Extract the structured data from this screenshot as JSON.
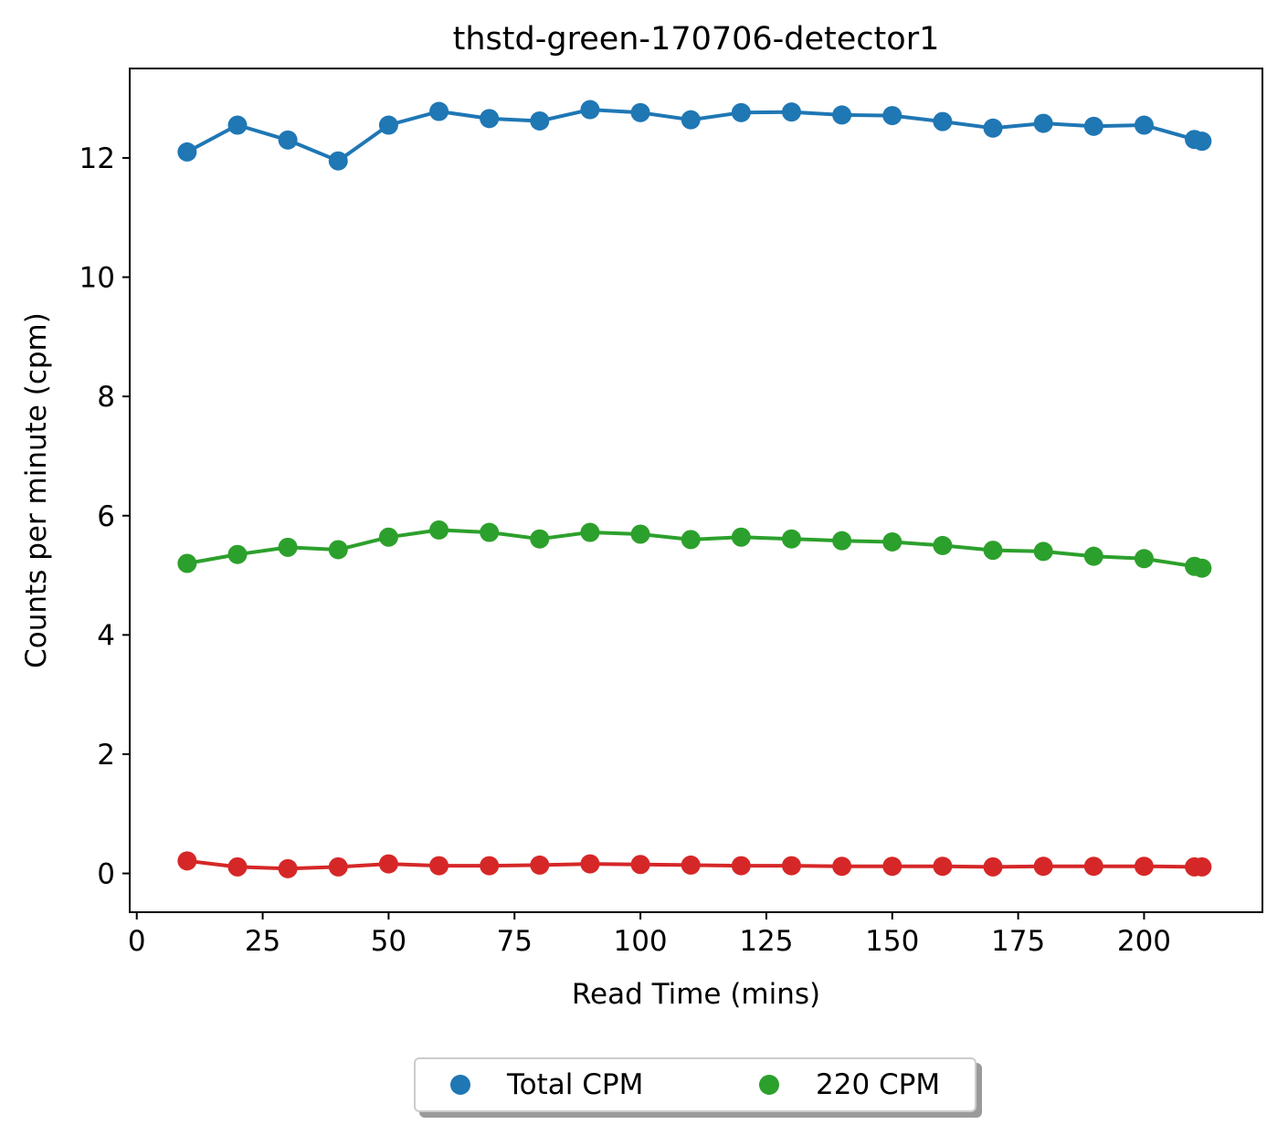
{
  "chart_data": {
    "type": "line",
    "title": "thstd-green-170706-detector1",
    "xlabel": "Read Time (mins)",
    "ylabel": "Counts per minute (cpm)",
    "xlim": [
      -1.4,
      223.5
    ],
    "ylim": [
      -0.65,
      13.5
    ],
    "xticks": [
      0,
      25,
      50,
      75,
      100,
      125,
      150,
      175,
      200
    ],
    "yticks": [
      0,
      2,
      4,
      6,
      8,
      10,
      12
    ],
    "grid": false,
    "legend_position": "below plot, centered, 2 columns",
    "x": [
      10,
      20,
      30,
      40,
      50,
      60,
      70,
      80,
      90,
      100,
      110,
      120,
      130,
      140,
      150,
      160,
      170,
      180,
      190,
      200,
      210,
      211.5
    ],
    "series": [
      {
        "name": "Total CPM",
        "color": "#1f77b4",
        "values": [
          12.1,
          12.55,
          12.3,
          11.95,
          12.55,
          12.78,
          12.66,
          12.62,
          12.81,
          12.76,
          12.64,
          12.76,
          12.77,
          12.72,
          12.71,
          12.61,
          12.5,
          12.58,
          12.53,
          12.55,
          12.31,
          12.28
        ]
      },
      {
        "name": "220 CPM",
        "color": "#2ca02c",
        "values": [
          5.2,
          5.35,
          5.47,
          5.43,
          5.64,
          5.76,
          5.72,
          5.61,
          5.72,
          5.69,
          5.6,
          5.64,
          5.61,
          5.58,
          5.56,
          5.5,
          5.42,
          5.4,
          5.32,
          5.28,
          5.15,
          5.12
        ]
      },
      {
        "color": "#d62728",
        "values": [
          0.21,
          0.11,
          0.08,
          0.11,
          0.16,
          0.13,
          0.13,
          0.14,
          0.16,
          0.15,
          0.14,
          0.13,
          0.13,
          0.12,
          0.12,
          0.12,
          0.11,
          0.12,
          0.12,
          0.12,
          0.11,
          0.11
        ]
      }
    ]
  },
  "legend": {
    "items": [
      {
        "label": "Total CPM",
        "color": "#1f77b4"
      },
      {
        "label": "220 CPM",
        "color": "#2ca02c"
      }
    ]
  }
}
